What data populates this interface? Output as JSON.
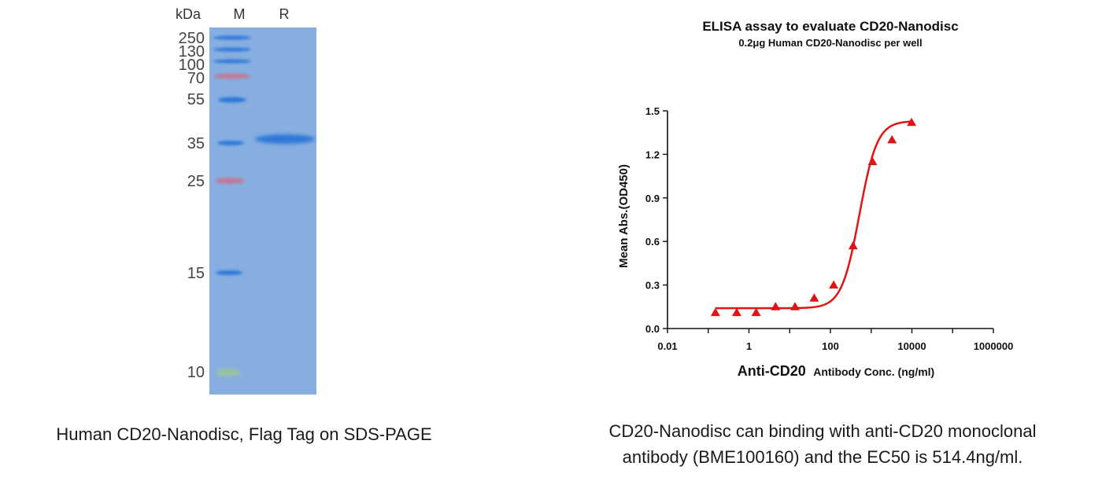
{
  "gel": {
    "unit_label": "kDa",
    "lanes": [
      "M",
      "R"
    ],
    "markers": [
      "250",
      "130",
      "100",
      "70",
      "55",
      "35",
      "25",
      "15",
      "10"
    ],
    "colors": {
      "gel": "#86aee0",
      "band_blue": "#2f78d8",
      "band_red": "#c07a98",
      "band_green": "#9ac4a0"
    }
  },
  "captions": {
    "left": "Human CD20-Nanodisc, Flag Tag on SDS-PAGE",
    "right_line1": "CD20-Nanodisc can binding with anti-CD20 monoclonal",
    "right_line2": "antibody (BME100160) and the EC50 is 514.4ng/ml."
  },
  "chart_data": {
    "type": "scatter",
    "title": "ELISA assay to evaluate CD20-Nanodisc",
    "subtitle": "0.2μg Human CD20-Nanodisc per well",
    "xlabel_bold": "Anti-CD20",
    "xlabel_rest": "Antibody Conc. (ng/ml)",
    "ylabel": "Mean Abs.(OD450)",
    "x_scale": "log",
    "xlim": [
      0.01,
      1000000
    ],
    "ylim": [
      0,
      1.5
    ],
    "x_ticks": [
      "0.01",
      "1",
      "100",
      "10000",
      "1000000"
    ],
    "y_ticks": [
      "0.0",
      "0.3",
      "0.6",
      "0.9",
      "1.2",
      "1.5"
    ],
    "grid": false,
    "marker_color": "#e01414",
    "points": {
      "x": [
        0.15,
        0.5,
        1.5,
        4.5,
        13.5,
        40,
        120,
        360,
        1080,
        3250,
        9800
      ],
      "y": [
        0.11,
        0.11,
        0.11,
        0.15,
        0.15,
        0.21,
        0.3,
        0.57,
        1.15,
        1.3,
        1.42
      ]
    },
    "fit_curve": {
      "bottom": 0.14,
      "top": 1.43,
      "ec50": 514.4,
      "hill": 2.0
    }
  }
}
